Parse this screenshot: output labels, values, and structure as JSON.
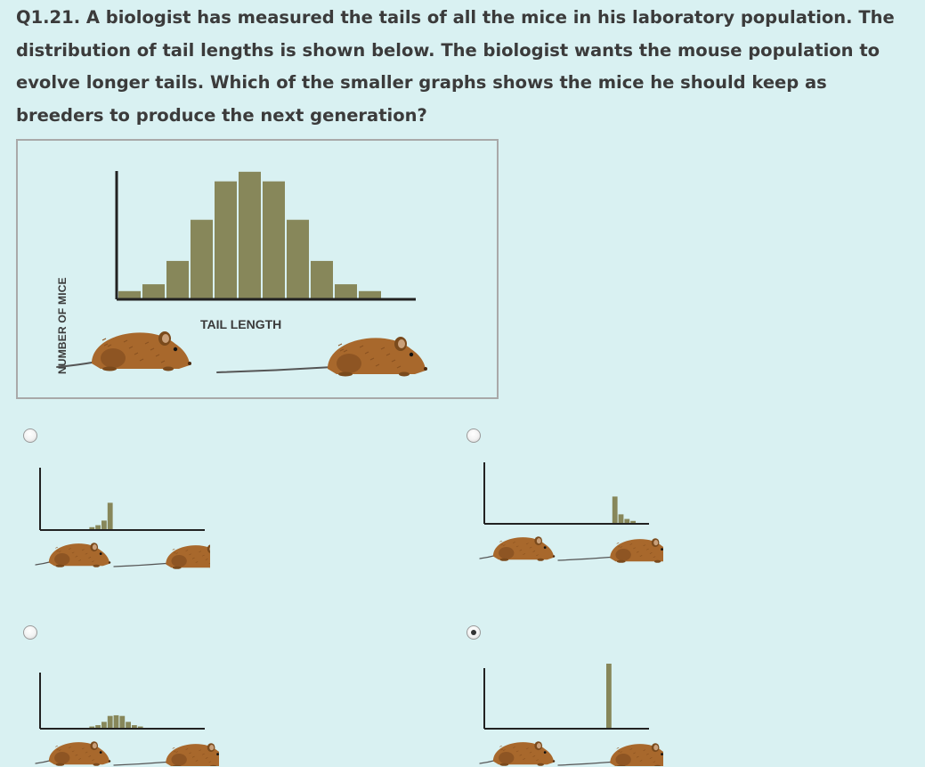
{
  "question": {
    "text": "Q1.21. A biologist has measured the tails of all the mice in his laboratory population. The distribution of tail lengths is shown below. The biologist wants the mouse population to evolve longer tails. Which of the smaller graphs shows the mice he should keep as breeders to produce the next generation?"
  },
  "colors": {
    "background": "#d9f1f2",
    "bar_fill": "#87875a",
    "axis": "#222222",
    "mouse_body": "#a8682c"
  },
  "chart_data": [
    {
      "id": "main",
      "type": "bar",
      "xlabel": "TAIL LENGTH",
      "ylabel": "NUMBER OF MICE",
      "values": [
        0.05,
        0.1,
        0.27,
        0.57,
        0.85,
        0.92,
        0.85,
        0.57,
        0.27,
        0.1,
        0.05
      ]
    },
    {
      "id": "option-a",
      "type": "bar",
      "values": [
        0,
        0,
        0,
        0,
        0,
        0,
        0,
        0,
        0.03,
        0.06,
        0.13,
        0.4,
        0,
        0,
        0,
        0,
        0,
        0,
        0,
        0,
        0,
        0,
        0,
        0,
        0,
        0,
        0,
        0
      ]
    },
    {
      "id": "option-b",
      "type": "bar",
      "values": [
        0,
        0,
        0,
        0,
        0,
        0,
        0,
        0,
        0,
        0,
        0,
        0,
        0,
        0,
        0,
        0,
        0,
        0,
        0,
        0,
        0,
        0.4,
        0.13,
        0.06,
        0.03,
        0,
        0,
        0
      ]
    },
    {
      "id": "option-c",
      "type": "bar",
      "values": [
        0,
        0,
        0,
        0,
        0,
        0,
        0,
        0,
        0.02,
        0.04,
        0.09,
        0.18,
        0.19,
        0.18,
        0.09,
        0.04,
        0.02,
        0,
        0,
        0,
        0,
        0,
        0,
        0,
        0,
        0,
        0,
        0
      ]
    },
    {
      "id": "option-d",
      "type": "bar",
      "values": [
        0,
        0,
        0,
        0,
        0,
        0,
        0,
        0,
        0,
        0,
        0,
        0,
        0,
        0,
        0,
        0,
        0,
        0,
        0,
        0,
        1,
        0,
        0,
        0,
        0,
        0,
        0,
        0
      ]
    }
  ],
  "options": [
    {
      "id": "A",
      "selected": false
    },
    {
      "id": "B",
      "selected": false
    },
    {
      "id": "C",
      "selected": false
    },
    {
      "id": "D",
      "selected": true
    }
  ]
}
